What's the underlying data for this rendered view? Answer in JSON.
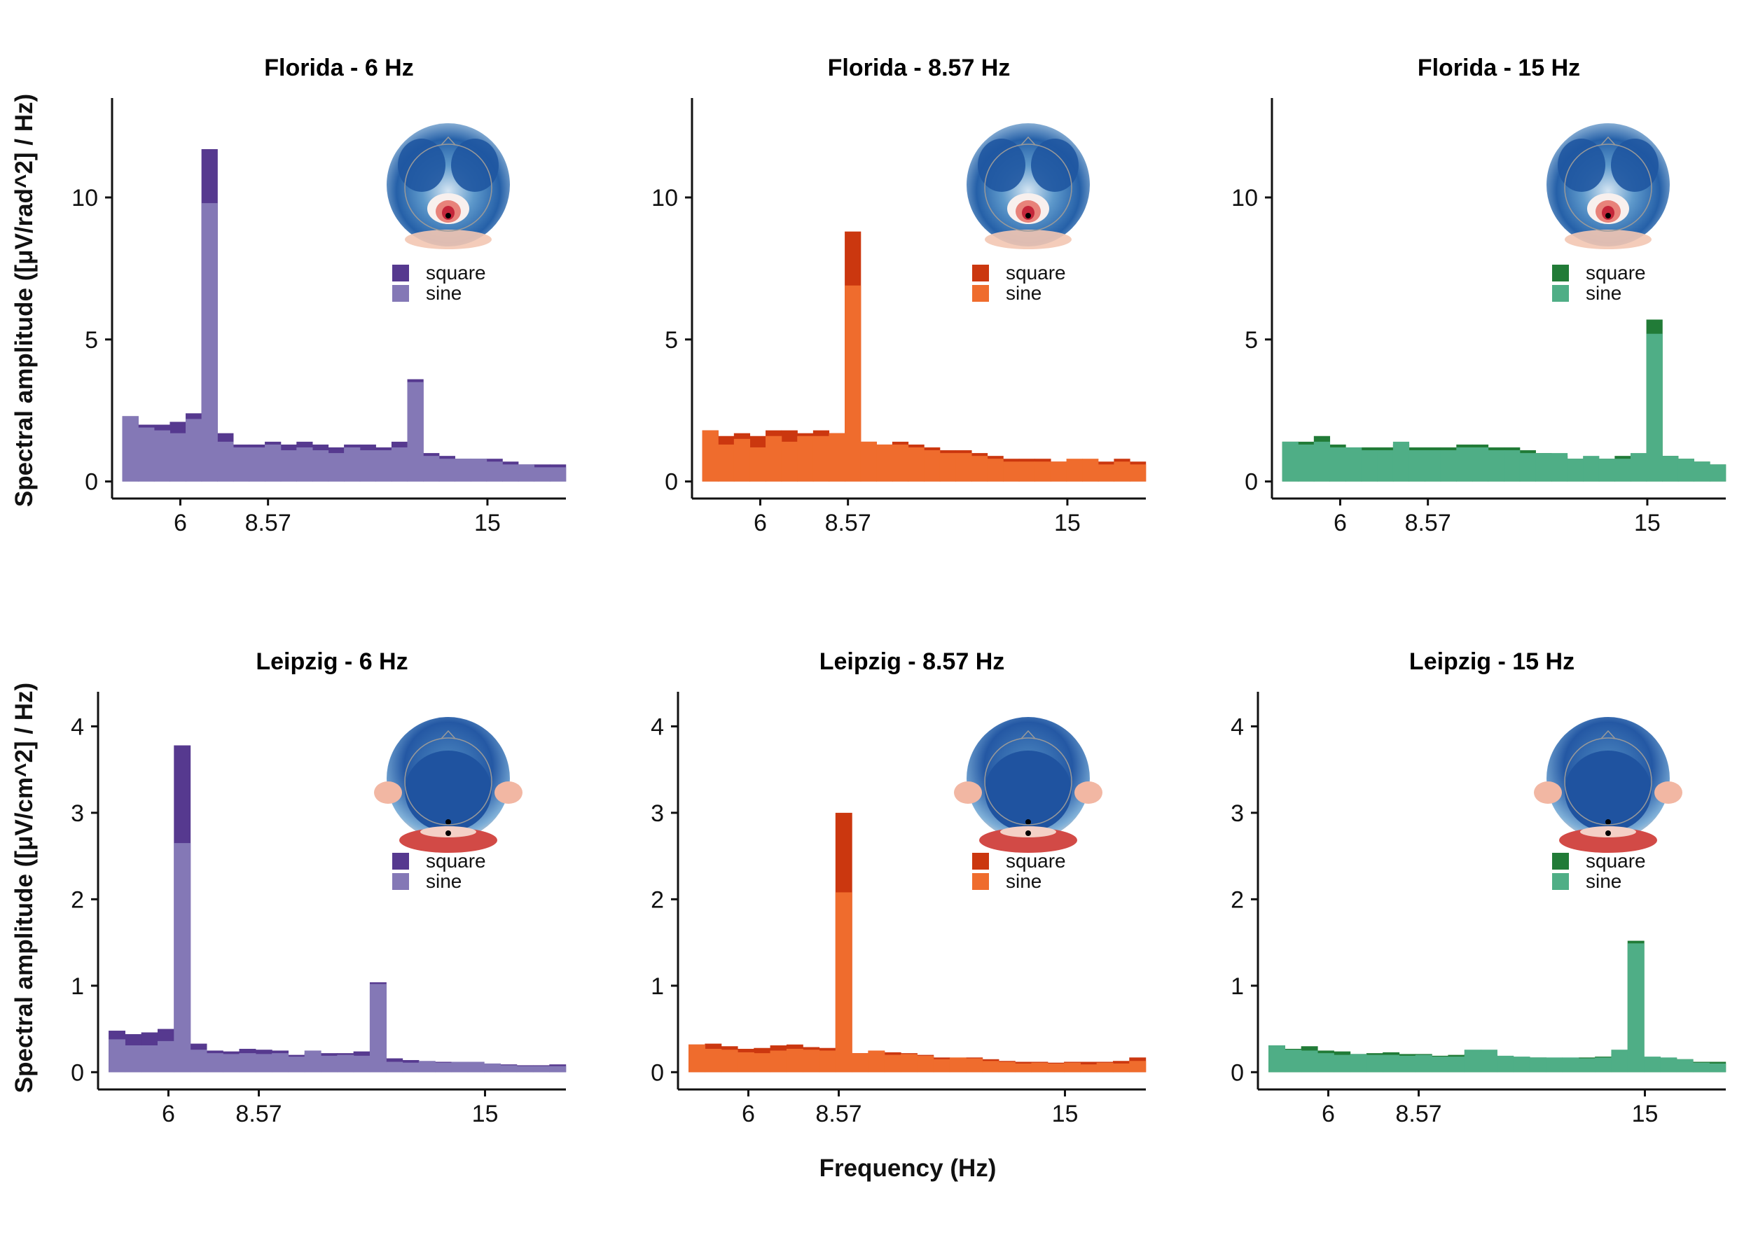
{
  "figure": {
    "xlabel": "Frequency (Hz)",
    "ylabel_top": "Spectral amplitude ([μV/rad^2] / Hz)",
    "ylabel_bottom": "Spectral amplitude ([μV/cm^2] / Hz)",
    "legend_labels": [
      "square",
      "sine"
    ]
  },
  "chart_data": [
    {
      "type": "bar",
      "title": "Florida - 6 Hz",
      "xticks": [
        6,
        8.57,
        15
      ],
      "xlim": [
        4,
        17.3
      ],
      "yticks": [
        0,
        5,
        10
      ],
      "ylim": [
        -0.6,
        13.5
      ],
      "legend": "top-right",
      "topography": "blue head map with red focus near posterior midline",
      "colors": {
        "square": "#56398f",
        "sine": "#8478b6"
      },
      "bins": {
        "start": 4.3,
        "width": 0.464
      },
      "series": [
        {
          "name": "square",
          "values": [
            2.3,
            2.0,
            2.0,
            2.1,
            2.4,
            11.7,
            1.7,
            1.3,
            1.3,
            1.4,
            1.3,
            1.4,
            1.3,
            1.2,
            1.3,
            1.3,
            1.2,
            1.4,
            3.6,
            1.0,
            0.9,
            0.8,
            0.8,
            0.8,
            0.7,
            0.6,
            0.6,
            0.6
          ]
        },
        {
          "name": "sine",
          "values": [
            2.3,
            1.9,
            1.8,
            1.7,
            2.2,
            9.8,
            1.4,
            1.2,
            1.2,
            1.3,
            1.1,
            1.2,
            1.1,
            1.0,
            1.2,
            1.1,
            1.1,
            1.2,
            3.5,
            0.9,
            0.8,
            0.8,
            0.8,
            0.7,
            0.6,
            0.6,
            0.5,
            0.5
          ]
        }
      ]
    },
    {
      "type": "bar",
      "title": "Florida - 8.57 Hz",
      "xticks": [
        6,
        8.57,
        15
      ],
      "xlim": [
        4,
        17.3
      ],
      "yticks": [
        0,
        5,
        10
      ],
      "ylim": [
        -0.6,
        13.5
      ],
      "legend": "top-right",
      "topography": "blue head map with red focus near posterior midline",
      "colors": {
        "square": "#cb370f",
        "sine": "#ef6c2d"
      },
      "bins": {
        "start": 4.3,
        "width": 0.464
      },
      "series": [
        {
          "name": "square",
          "values": [
            1.8,
            1.6,
            1.7,
            1.6,
            1.8,
            1.8,
            1.7,
            1.8,
            1.7,
            8.8,
            1.4,
            1.3,
            1.4,
            1.3,
            1.2,
            1.1,
            1.1,
            1.0,
            0.9,
            0.8,
            0.8,
            0.8,
            0.7,
            0.7,
            0.7,
            0.7,
            0.8,
            0.7
          ]
        },
        {
          "name": "sine",
          "values": [
            1.8,
            1.3,
            1.5,
            1.2,
            1.6,
            1.4,
            1.6,
            1.6,
            1.7,
            6.9,
            1.4,
            1.3,
            1.3,
            1.2,
            1.1,
            1.0,
            1.0,
            0.9,
            0.8,
            0.7,
            0.7,
            0.7,
            0.7,
            0.8,
            0.8,
            0.6,
            0.7,
            0.6
          ]
        }
      ]
    },
    {
      "type": "bar",
      "title": "Florida - 15 Hz",
      "xticks": [
        6,
        8.57,
        15
      ],
      "xlim": [
        4,
        17.3
      ],
      "yticks": [
        0,
        5,
        10
      ],
      "ylim": [
        -0.6,
        13.5
      ],
      "legend": "top-right",
      "topography": "blue head map with red focus near posterior midline",
      "colors": {
        "square": "#217b37",
        "sine": "#4fae86"
      },
      "bins": {
        "start": 4.3,
        "width": 0.464
      },
      "series": [
        {
          "name": "square",
          "values": [
            1.4,
            1.4,
            1.6,
            1.3,
            1.2,
            1.2,
            1.2,
            1.3,
            1.2,
            1.2,
            1.2,
            1.3,
            1.3,
            1.2,
            1.2,
            1.1,
            1.0,
            0.9,
            0.8,
            0.8,
            0.8,
            0.9,
            0.9,
            5.7,
            0.9,
            0.8,
            0.7,
            0.6
          ]
        },
        {
          "name": "sine",
          "values": [
            1.4,
            1.3,
            1.4,
            1.2,
            1.2,
            1.1,
            1.1,
            1.4,
            1.1,
            1.1,
            1.1,
            1.2,
            1.2,
            1.1,
            1.1,
            1.0,
            1.0,
            1.0,
            0.8,
            0.9,
            0.8,
            0.8,
            1.0,
            5.2,
            0.9,
            0.8,
            0.7,
            0.6
          ]
        }
      ]
    },
    {
      "type": "bar",
      "title": "Leipzig - 6 Hz",
      "xticks": [
        6,
        8.57,
        15
      ],
      "xlim": [
        4,
        17.3
      ],
      "yticks": [
        0,
        1,
        2,
        3,
        4
      ],
      "ylim": [
        -0.2,
        4.4
      ],
      "legend": "top-right",
      "topography": "blue head map with red posterior edge and lateral red lobes",
      "colors": {
        "square": "#56398f",
        "sine": "#8478b6"
      },
      "bins": {
        "start": 4.3,
        "width": 0.464
      },
      "series": [
        {
          "name": "square",
          "values": [
            0.48,
            0.44,
            0.46,
            0.5,
            3.78,
            0.33,
            0.25,
            0.24,
            0.27,
            0.26,
            0.25,
            0.2,
            0.22,
            0.22,
            0.22,
            0.24,
            1.04,
            0.16,
            0.14,
            0.12,
            0.12,
            0.11,
            0.1,
            0.1,
            0.09,
            0.08,
            0.08,
            0.09
          ]
        },
        {
          "name": "sine",
          "values": [
            0.38,
            0.31,
            0.31,
            0.36,
            2.65,
            0.26,
            0.22,
            0.21,
            0.22,
            0.21,
            0.22,
            0.18,
            0.25,
            0.19,
            0.2,
            0.19,
            1.02,
            0.12,
            0.11,
            0.13,
            0.11,
            0.12,
            0.12,
            0.1,
            0.08,
            0.07,
            0.07,
            0.07
          ]
        }
      ]
    },
    {
      "type": "bar",
      "title": "Leipzig - 8.57 Hz",
      "xticks": [
        6,
        8.57,
        15
      ],
      "xlim": [
        4,
        17.3
      ],
      "yticks": [
        0,
        1,
        2,
        3,
        4
      ],
      "ylim": [
        -0.2,
        4.4
      ],
      "legend": "top-right",
      "topography": "blue head map with red posterior edge and lateral red lobes",
      "colors": {
        "square": "#cb370f",
        "sine": "#ef6c2d"
      },
      "bins": {
        "start": 4.3,
        "width": 0.464
      },
      "series": [
        {
          "name": "square",
          "values": [
            0.32,
            0.33,
            0.3,
            0.27,
            0.28,
            0.31,
            0.32,
            0.29,
            0.28,
            3.0,
            0.22,
            0.24,
            0.23,
            0.22,
            0.2,
            0.17,
            0.16,
            0.17,
            0.15,
            0.13,
            0.12,
            0.12,
            0.11,
            0.12,
            0.12,
            0.12,
            0.13,
            0.17
          ]
        },
        {
          "name": "sine",
          "values": [
            0.32,
            0.27,
            0.26,
            0.23,
            0.22,
            0.25,
            0.27,
            0.26,
            0.25,
            2.08,
            0.22,
            0.25,
            0.2,
            0.21,
            0.19,
            0.15,
            0.17,
            0.16,
            0.13,
            0.12,
            0.1,
            0.11,
            0.1,
            0.11,
            0.09,
            0.11,
            0.1,
            0.13
          ]
        }
      ]
    },
    {
      "type": "bar",
      "title": "Leipzig - 15 Hz",
      "xticks": [
        6,
        8.57,
        15
      ],
      "xlim": [
        4,
        17.3
      ],
      "yticks": [
        0,
        1,
        2,
        3,
        4
      ],
      "ylim": [
        -0.2,
        4.4
      ],
      "legend": "top-right",
      "topography": "blue head map with red posterior edge and lateral red lobes",
      "colors": {
        "square": "#217b37",
        "sine": "#4fae86"
      },
      "bins": {
        "start": 4.3,
        "width": 0.464
      },
      "series": [
        {
          "name": "square",
          "values": [
            0.31,
            0.27,
            0.3,
            0.25,
            0.24,
            0.21,
            0.22,
            0.23,
            0.21,
            0.21,
            0.19,
            0.2,
            0.21,
            0.2,
            0.18,
            0.17,
            0.17,
            0.15,
            0.16,
            0.17,
            0.18,
            0.21,
            1.52,
            0.16,
            0.16,
            0.15,
            0.12,
            0.12
          ]
        },
        {
          "name": "sine",
          "values": [
            0.31,
            0.26,
            0.25,
            0.22,
            0.2,
            0.21,
            0.2,
            0.2,
            0.19,
            0.2,
            0.18,
            0.18,
            0.26,
            0.26,
            0.19,
            0.18,
            0.17,
            0.17,
            0.17,
            0.16,
            0.17,
            0.26,
            1.49,
            0.18,
            0.17,
            0.15,
            0.11,
            0.1
          ]
        }
      ]
    }
  ]
}
